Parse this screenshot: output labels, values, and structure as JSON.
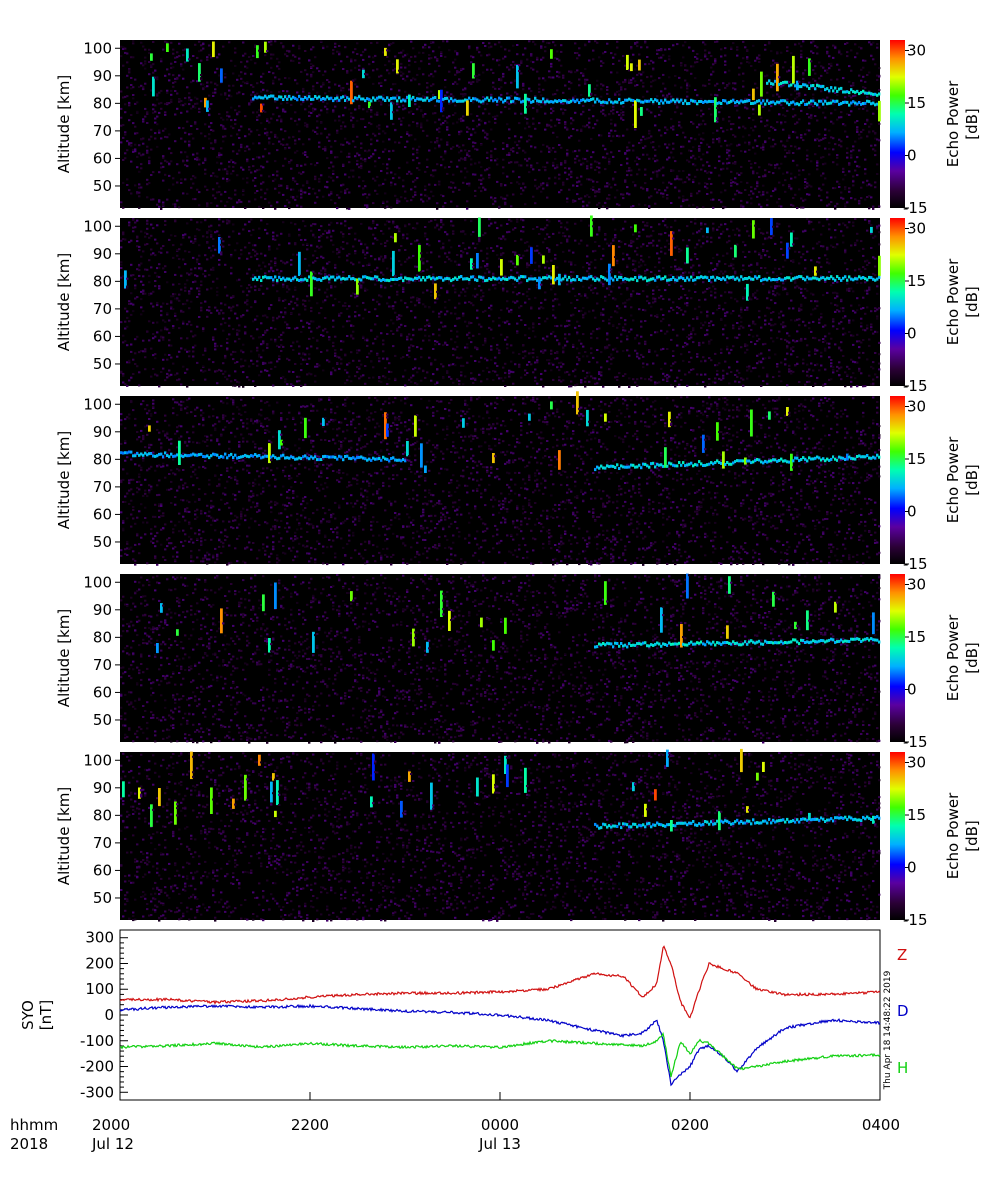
{
  "chart_data": [
    {
      "type": "heatmap",
      "panel": 1,
      "ylabel": "Altitude [km]",
      "yticks": [
        50,
        60,
        70,
        80,
        90,
        100
      ],
      "ylim": [
        42,
        103
      ],
      "colorbar": {
        "label": "Echo Power",
        "unit": "[dB]",
        "ticks": [
          30,
          15,
          0,
          -15
        ],
        "range": [
          -15,
          33
        ]
      },
      "echo_layers": [
        {
          "t_start": -2.6,
          "t_end": 4.0,
          "alt_start": 82,
          "alt_end": 80,
          "level": 5
        },
        {
          "t_start": 2.8,
          "t_end": 4.0,
          "alt_start": 88,
          "alt_end": 83,
          "level": 10
        }
      ]
    },
    {
      "type": "heatmap",
      "panel": 2,
      "ylabel": "Altitude [km]",
      "yticks": [
        50,
        60,
        70,
        80,
        90,
        100
      ],
      "ylim": [
        42,
        103
      ],
      "colorbar": {
        "label": "Echo Power",
        "unit": "[dB]",
        "ticks": [
          30,
          15,
          0,
          -15
        ],
        "range": [
          -15,
          33
        ]
      },
      "echo_layers": [
        {
          "t_start": -2.6,
          "t_end": 4.0,
          "alt_start": 81,
          "alt_end": 81,
          "level": 8
        }
      ]
    },
    {
      "type": "heatmap",
      "panel": 3,
      "ylabel": "Altitude [km]",
      "yticks": [
        50,
        60,
        70,
        80,
        90,
        100
      ],
      "ylim": [
        42,
        103
      ],
      "colorbar": {
        "label": "Echo Power",
        "unit": "[dB]",
        "ticks": [
          30,
          15,
          0,
          -15
        ],
        "range": [
          -15,
          33
        ]
      },
      "echo_layers": [
        {
          "t_start": -4.0,
          "t_end": -1.0,
          "alt_start": 82,
          "alt_end": 80,
          "level": 3
        },
        {
          "t_start": 1.0,
          "t_end": 4.0,
          "alt_start": 77,
          "alt_end": 81,
          "level": 9
        }
      ]
    },
    {
      "type": "heatmap",
      "panel": 4,
      "ylabel": "Altitude [km]",
      "yticks": [
        50,
        60,
        70,
        80,
        90,
        100
      ],
      "ylim": [
        42,
        103
      ],
      "colorbar": {
        "label": "Echo Power",
        "unit": "[dB]",
        "ticks": [
          30,
          15,
          0,
          -15
        ],
        "range": [
          -15,
          33
        ]
      },
      "echo_layers": [
        {
          "t_start": 1.0,
          "t_end": 4.0,
          "alt_start": 77,
          "alt_end": 79,
          "level": 10
        }
      ]
    },
    {
      "type": "heatmap",
      "panel": 5,
      "ylabel": "Altitude [km]",
      "yticks": [
        50,
        60,
        70,
        80,
        90,
        100
      ],
      "ylim": [
        42,
        103
      ],
      "colorbar": {
        "label": "Echo Power",
        "unit": "[dB]",
        "ticks": [
          30,
          15,
          0,
          -15
        ],
        "range": [
          -15,
          33
        ]
      },
      "echo_layers": [
        {
          "t_start": 1.0,
          "t_end": 4.0,
          "alt_start": 76,
          "alt_end": 79,
          "level": 6
        }
      ]
    },
    {
      "type": "line",
      "ylabel": "SYO",
      "yunit": "[nT]",
      "yticks": [
        300,
        200,
        100,
        0,
        -100,
        -200,
        -300
      ],
      "ylim": [
        -330,
        330
      ],
      "timestamp": "Thu Apr 18 14:48:22 2019",
      "series": [
        {
          "name": "Z",
          "color": "#d01010",
          "x": [
            -4.0,
            -3.5,
            -3.0,
            -2.5,
            -2.0,
            -1.5,
            -1.0,
            -0.5,
            0.0,
            0.5,
            1.0,
            1.3,
            1.5,
            1.65,
            1.72,
            1.8,
            1.9,
            2.0,
            2.1,
            2.2,
            2.35,
            2.5,
            2.7,
            3.0,
            3.5,
            4.0
          ],
          "y": [
            60,
            60,
            50,
            55,
            70,
            80,
            85,
            85,
            90,
            100,
            160,
            150,
            70,
            120,
            270,
            200,
            50,
            -10,
            100,
            200,
            180,
            160,
            100,
            80,
            80,
            90
          ]
        },
        {
          "name": "D",
          "color": "#0000c8",
          "x": [
            -4.0,
            -3.5,
            -3.0,
            -2.5,
            -2.0,
            -1.5,
            -1.0,
            -0.5,
            0.0,
            0.5,
            1.0,
            1.3,
            1.5,
            1.65,
            1.72,
            1.8,
            1.9,
            2.0,
            2.1,
            2.2,
            2.35,
            2.5,
            2.7,
            3.0,
            3.5,
            4.0
          ],
          "y": [
            20,
            30,
            35,
            30,
            35,
            25,
            15,
            10,
            0,
            -20,
            -60,
            -80,
            -70,
            -20,
            -100,
            -270,
            -230,
            -200,
            -130,
            -120,
            -160,
            -220,
            -130,
            -50,
            -20,
            -30
          ]
        },
        {
          "name": "H",
          "color": "#10d010",
          "x": [
            -4.0,
            -3.5,
            -3.0,
            -2.5,
            -2.0,
            -1.5,
            -1.0,
            -0.5,
            0.0,
            0.5,
            1.0,
            1.3,
            1.5,
            1.65,
            1.72,
            1.8,
            1.9,
            2.0,
            2.1,
            2.2,
            2.35,
            2.5,
            2.7,
            3.0,
            3.5,
            4.0
          ],
          "y": [
            -125,
            -120,
            -110,
            -125,
            -110,
            -120,
            -125,
            -120,
            -125,
            -100,
            -110,
            -115,
            -120,
            -100,
            -75,
            -240,
            -100,
            -150,
            -100,
            -110,
            -160,
            -210,
            -200,
            -180,
            -160,
            -155
          ]
        }
      ]
    }
  ],
  "x_axis": {
    "unit": "hours from 00:00 UT Jul 13",
    "xlim": [
      -4.0,
      4.0
    ],
    "row1_label": "hhmm",
    "row2_label": "2018",
    "ticks": [
      {
        "x": -4.0,
        "label": "2000",
        "date": "Jul 12"
      },
      {
        "x": -2.0,
        "label": "2200",
        "date": ""
      },
      {
        "x": 0.0,
        "label": "0000",
        "date": "Jul 13"
      },
      {
        "x": 2.0,
        "label": "0200",
        "date": ""
      },
      {
        "x": 4.0,
        "label": "0400",
        "date": ""
      }
    ]
  }
}
